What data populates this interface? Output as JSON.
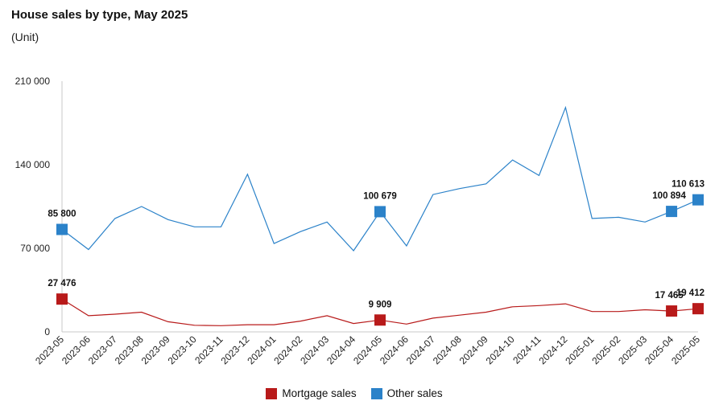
{
  "title": "House sales by type, May 2025",
  "subtitle": "(Unit)",
  "colors": {
    "mortgage": "#b81a1a",
    "other": "#2b82c9",
    "axis": "#c8c8c8"
  },
  "chart_data": {
    "type": "line",
    "title": "House sales by type, May 2025",
    "ylabel": "(Unit)",
    "ylim": [
      0,
      210000
    ],
    "yticks": [
      0,
      70000,
      140000,
      210000
    ],
    "ytick_labels": [
      "0",
      "70 000",
      "140 000",
      "210 000"
    ],
    "grid": false,
    "legend_position": "bottom",
    "categories": [
      "2023-05",
      "2023-06",
      "2023-07",
      "2023-08",
      "2023-09",
      "2023-10",
      "2023-11",
      "2023-12",
      "2024-01",
      "2024-02",
      "2024-03",
      "2024-04",
      "2024-05",
      "2024-06",
      "2024-07",
      "2024-08",
      "2024-09",
      "2024-10",
      "2024-11",
      "2024-12",
      "2025-01",
      "2025-02",
      "2025-03",
      "2025-04",
      "2025-05"
    ],
    "series": [
      {
        "name": "Mortgage sales",
        "values": [
          27476,
          13500,
          14800,
          16500,
          8500,
          5500,
          5200,
          6000,
          6000,
          9000,
          13500,
          7000,
          9909,
          6500,
          11500,
          14000,
          16500,
          21000,
          22000,
          23500,
          17000,
          17000,
          18500,
          17465,
          19412
        ]
      },
      {
        "name": "Other sales",
        "values": [
          85800,
          69000,
          95000,
          105000,
          94000,
          88000,
          88000,
          132000,
          74000,
          84000,
          92000,
          68000,
          100679,
          72000,
          115000,
          120000,
          124000,
          144000,
          131000,
          188000,
          95000,
          96000,
          92000,
          100894,
          110613
        ]
      }
    ],
    "labeled_points": [
      {
        "series": 0,
        "index": 0,
        "label": "27 476"
      },
      {
        "series": 0,
        "index": 12,
        "label": "9 909"
      },
      {
        "series": 0,
        "index": 23,
        "label": "17 465"
      },
      {
        "series": 0,
        "index": 24,
        "label": "19 412"
      },
      {
        "series": 1,
        "index": 0,
        "label": "85 800"
      },
      {
        "series": 1,
        "index": 12,
        "label": "100 679"
      },
      {
        "series": 1,
        "index": 23,
        "label": "100 894"
      },
      {
        "series": 1,
        "index": 24,
        "label": "110 613"
      }
    ]
  }
}
